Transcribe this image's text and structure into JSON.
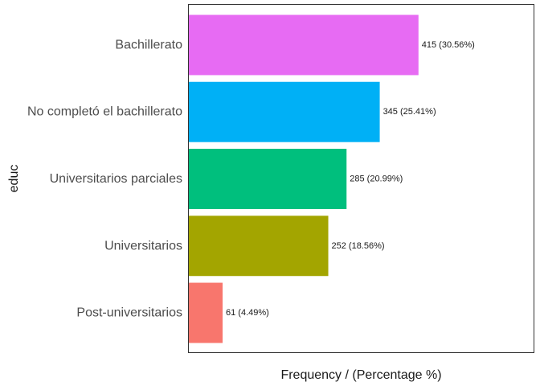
{
  "chart_data": {
    "type": "bar",
    "orientation": "horizontal",
    "categories": [
      "Bachillerato",
      "No completó el bachillerato",
      "Universitarios parciales",
      "Universitarios",
      "Post-universitarios"
    ],
    "values": [
      415,
      345,
      285,
      252,
      61
    ],
    "data_labels": [
      "415 (30.56%)",
      "345 (25.41%)",
      "285 (20.99%)",
      "252 (18.56%)",
      "61 (4.49%)"
    ],
    "colors": [
      "#E76BF3",
      "#00B0F6",
      "#00BF7D",
      "#A3A500",
      "#F8766D"
    ],
    "xlabel": "Frequency / (Percentage %)",
    "ylabel": "educ",
    "xlim": [
      0,
      623
    ],
    "grid": false,
    "legend": "none"
  }
}
